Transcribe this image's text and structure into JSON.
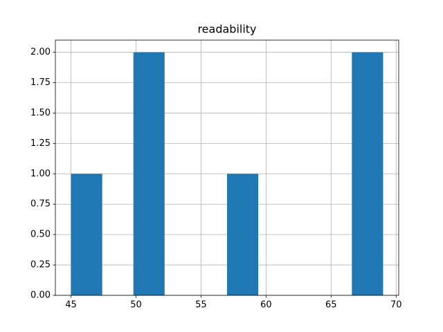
{
  "chart_data": {
    "type": "histogram",
    "title": "readability",
    "bins": [
      45,
      47.4,
      49.8,
      52.2,
      54.6,
      57,
      59.4,
      61.8,
      64.2,
      66.6,
      69
    ],
    "values": [
      1,
      0,
      2,
      0,
      0,
      1,
      0,
      0,
      0,
      2
    ],
    "color": "#1f77b4",
    "xlim": [
      43.8,
      70.2
    ],
    "xticks": [
      45,
      50,
      55,
      60,
      65,
      70
    ],
    "ylim": [
      0,
      2.1
    ],
    "yticks": [
      {
        "value": 0,
        "label": "0.00"
      },
      {
        "value": 0.25,
        "label": "0.25"
      },
      {
        "value": 0.5,
        "label": "0.50"
      },
      {
        "value": 0.75,
        "label": "0.75"
      },
      {
        "value": 1,
        "label": "1.00"
      },
      {
        "value": 1.25,
        "label": "1.25"
      },
      {
        "value": 1.5,
        "label": "1.50"
      },
      {
        "value": 1.75,
        "label": "1.75"
      },
      {
        "value": 2,
        "label": "2.00"
      }
    ],
    "grid": true
  }
}
